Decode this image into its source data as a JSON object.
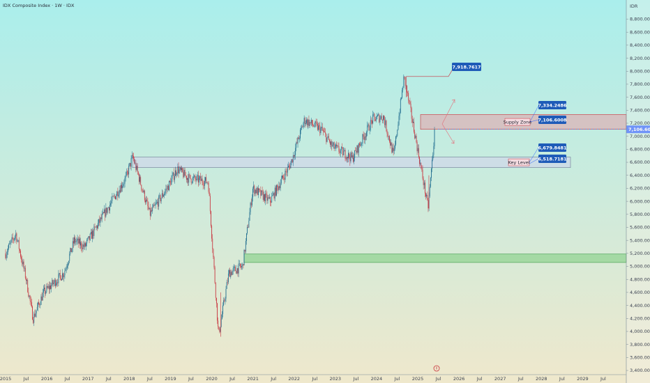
{
  "header": {
    "title": "IDX Composite Index · 1W · IDX"
  },
  "price_axis": {
    "currency": "IDR",
    "ticks": [
      "8,800.0000",
      "8,600.0000",
      "8,400.0000",
      "8,200.0000",
      "8,000.0000",
      "7,800.0000",
      "7,600.0000",
      "7,400.0000",
      "7,200.0000",
      "7,000.0000",
      "6,800.0000",
      "6,600.0000",
      "6,400.0000",
      "6,200.0000",
      "6,000.0000",
      "5,800.0000",
      "5,600.0000",
      "5,400.0000",
      "5,200.0000",
      "5,000.0000",
      "4,800.0000",
      "4,600.0000",
      "4,400.0000",
      "4,200.0000",
      "4,000.0000",
      "3,800.0000",
      "3,600.0000",
      "3,400.0000"
    ],
    "current_price_label": "7,106.6008",
    "current_price_color": "#2962ff"
  },
  "time_axis": {
    "labels": [
      "2015",
      "Jul",
      "2016",
      "Jul",
      "2017",
      "Jul",
      "2018",
      "Jul",
      "2019",
      "Jul",
      "2020",
      "Jul",
      "2021",
      "Jul",
      "2022",
      "Jul",
      "2023",
      "Jul",
      "2024",
      "Jul",
      "2025",
      "Jul",
      "2026",
      "Jul",
      "2027",
      "Jul",
      "2028",
      "Jul",
      "2029",
      "Jul"
    ]
  },
  "annotations": {
    "peak_label": "7,918.7617",
    "supply_top_label": "7,334.2486",
    "supply_bottom_label": "7,106.6008",
    "supply_zone_text": "Supply Zone",
    "key_top_label": "6,679.8481",
    "key_bottom_label": "6,518.7181",
    "key_zone_text": "Key Level",
    "callout_color": "#1e5bb8"
  },
  "colors": {
    "bull": "#1e6b8e",
    "bear": "#c8323c",
    "bg_top": "#aaeeec",
    "bg_bottom": "#efe8cc"
  },
  "chart_data": {
    "type": "candlestick",
    "title": "IDX Composite Index · 1W · IDX",
    "y_axis": "price (IDR)",
    "ylim": [
      3400,
      8980
    ],
    "xlim": [
      "2015-01",
      "2029-12"
    ],
    "series": [
      {
        "name": "IDX Composite Index",
        "points": [
          [
            "2015-01",
            5200
          ],
          [
            "2015-04",
            5500
          ],
          [
            "2015-07",
            4800
          ],
          [
            "2015-09",
            4200
          ],
          [
            "2015-12",
            4590
          ],
          [
            "2016-06",
            4900
          ],
          [
            "2016-09",
            5400
          ],
          [
            "2016-12",
            5300
          ],
          [
            "2017-06",
            5830
          ],
          [
            "2017-12",
            6355
          ],
          [
            "2018-02",
            6690
          ],
          [
            "2018-07",
            5800
          ],
          [
            "2018-12",
            6200
          ],
          [
            "2019-03",
            6500
          ],
          [
            "2019-06",
            6360
          ],
          [
            "2019-12",
            6300
          ],
          [
            "2020-03",
            3940
          ],
          [
            "2020-06",
            4900
          ],
          [
            "2020-10",
            5000
          ],
          [
            "2021-01",
            6200
          ],
          [
            "2021-06",
            6000
          ],
          [
            "2021-12",
            6580
          ],
          [
            "2022-04",
            7250
          ],
          [
            "2022-09",
            7100
          ],
          [
            "2022-12",
            6850
          ],
          [
            "2023-06",
            6660
          ],
          [
            "2023-12",
            7270
          ],
          [
            "2024-03",
            7300
          ],
          [
            "2024-06",
            6700
          ],
          [
            "2024-09",
            7910
          ],
          [
            "2024-12",
            7080
          ],
          [
            "2025-04",
            5900
          ],
          [
            "2025-06",
            7110
          ]
        ]
      }
    ],
    "zones": [
      {
        "name": "Supply Zone",
        "top": 7334.2486,
        "bottom": 7106.6008,
        "color": "#e6a0a8"
      },
      {
        "name": "Key Level",
        "top": 6679.8481,
        "bottom": 6518.7181,
        "color": "#cfd8e8"
      },
      {
        "name": "",
        "top": 5190,
        "bottom": 5060,
        "color": "#8fd18f"
      }
    ],
    "marked_levels": [
      7918.7617,
      7334.2486,
      7106.6008,
      6679.8481,
      6518.7181
    ],
    "grid": false,
    "legend": "none"
  }
}
